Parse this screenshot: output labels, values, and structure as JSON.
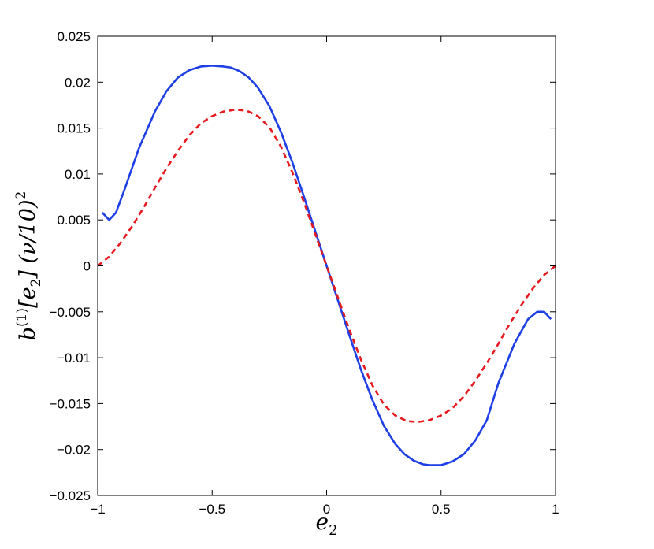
{
  "chart_data": {
    "type": "line",
    "xlabel": "e2",
    "ylabel": "b(1)[e2] (ν/10)2",
    "xlim": [
      -1,
      1
    ],
    "ylim": [
      -0.025,
      0.025
    ],
    "grid": false,
    "xticks": [
      {
        "value": -1,
        "label": "−1"
      },
      {
        "value": -0.5,
        "label": "−0.5"
      },
      {
        "value": 0,
        "label": "0"
      },
      {
        "value": 0.5,
        "label": "0.5"
      },
      {
        "value": 1,
        "label": "1"
      }
    ],
    "yticks": [
      {
        "value": -0.025,
        "label": "−0.025"
      },
      {
        "value": -0.02,
        "label": "−0.02"
      },
      {
        "value": -0.015,
        "label": "−0.015"
      },
      {
        "value": -0.01,
        "label": "−0.01"
      },
      {
        "value": -0.005,
        "label": "−0.005"
      },
      {
        "value": 0,
        "label": "0"
      },
      {
        "value": 0.005,
        "label": "0.005"
      },
      {
        "value": 0.01,
        "label": "0.01"
      },
      {
        "value": 0.015,
        "label": "0.015"
      },
      {
        "value": 0.02,
        "label": "0.02"
      },
      {
        "value": 0.025,
        "label": "0.025"
      }
    ],
    "series": [
      {
        "color": "#1f3fe6",
        "style": "solid",
        "x": [
          -0.98,
          -0.95,
          -0.92,
          -0.88,
          -0.82,
          -0.75,
          -0.7,
          -0.65,
          -0.6,
          -0.55,
          -0.5,
          -0.45,
          -0.42,
          -0.38,
          -0.34,
          -0.3,
          -0.25,
          -0.2,
          -0.15,
          -0.1,
          -0.05,
          0.0,
          0.05,
          0.1,
          0.15,
          0.2,
          0.25,
          0.3,
          0.34,
          0.38,
          0.42,
          0.45,
          0.5,
          0.55,
          0.6,
          0.65,
          0.7,
          0.75,
          0.82,
          0.88,
          0.92,
          0.95,
          0.98
        ],
        "y": [
          0.0058,
          0.005,
          0.0058,
          0.0085,
          0.0128,
          0.0168,
          0.019,
          0.0205,
          0.0213,
          0.0217,
          0.0218,
          0.0217,
          0.0216,
          0.0212,
          0.0205,
          0.0194,
          0.0174,
          0.0146,
          0.0113,
          0.0076,
          0.0038,
          0.0,
          -0.0038,
          -0.0076,
          -0.0113,
          -0.0146,
          -0.0174,
          -0.0194,
          -0.0205,
          -0.0212,
          -0.0216,
          -0.0217,
          -0.0217,
          -0.0213,
          -0.0205,
          -0.019,
          -0.0168,
          -0.0128,
          -0.0085,
          -0.0058,
          -0.005,
          -0.005,
          -0.0058
        ]
      },
      {
        "color": "#e6191f",
        "style": "dashed",
        "x": [
          -1.0,
          -0.95,
          -0.9,
          -0.85,
          -0.8,
          -0.75,
          -0.7,
          -0.65,
          -0.6,
          -0.55,
          -0.5,
          -0.45,
          -0.4,
          -0.35,
          -0.3,
          -0.25,
          -0.2,
          -0.15,
          -0.1,
          -0.05,
          0.0,
          0.05,
          0.1,
          0.15,
          0.2,
          0.25,
          0.3,
          0.35,
          0.4,
          0.45,
          0.5,
          0.55,
          0.6,
          0.65,
          0.7,
          0.75,
          0.8,
          0.85,
          0.9,
          0.95,
          1.0
        ],
        "y": [
          0.0,
          0.001,
          0.0025,
          0.0043,
          0.0063,
          0.0085,
          0.0106,
          0.0125,
          0.0142,
          0.0155,
          0.0163,
          0.0168,
          0.017,
          0.0169,
          0.0163,
          0.0151,
          0.013,
          0.0102,
          0.007,
          0.0035,
          0.0,
          -0.0035,
          -0.007,
          -0.0102,
          -0.013,
          -0.0151,
          -0.0163,
          -0.0169,
          -0.017,
          -0.0168,
          -0.0163,
          -0.0155,
          -0.0142,
          -0.0125,
          -0.0106,
          -0.0085,
          -0.0063,
          -0.0043,
          -0.0025,
          -0.001,
          0.0
        ]
      }
    ]
  }
}
